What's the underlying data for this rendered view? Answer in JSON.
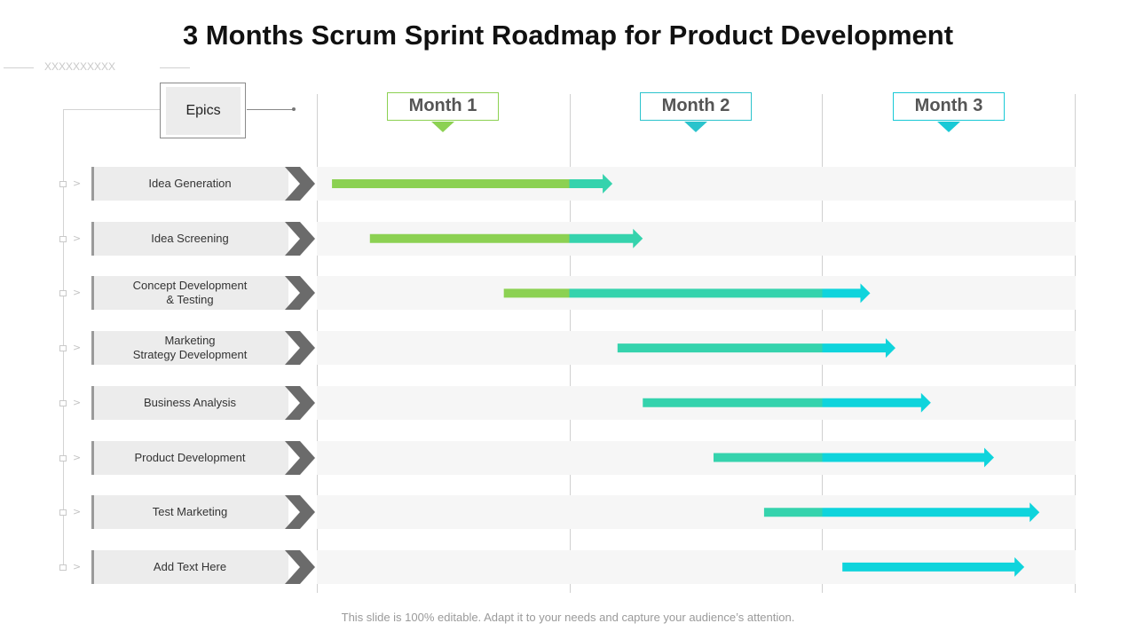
{
  "title": "3 Months Scrum Sprint Roadmap for Product Development",
  "decoration_text": "XXXXXXXXXX",
  "epics_label": "Epics",
  "footer": "This slide is 100% editable. Adapt it to your needs and capture your audience’s attention.",
  "colors": {
    "green": "#8cd152",
    "teal": "#35d3ad",
    "cyan": "#0fd4dc",
    "month1_border": "#8cd152",
    "month2_border": "#2bc3cc",
    "month3_border": "#18c9d6",
    "chevron": "#6b6b6b"
  },
  "chart_data": {
    "type": "gantt",
    "title": "3 Months Scrum Sprint Roadmap for Product Development",
    "x_unit": "months",
    "xlim": [
      0,
      3
    ],
    "months": [
      "Month 1",
      "Month 2",
      "Month 3"
    ],
    "tasks": [
      {
        "label": "Idea Generation",
        "start": 0.06,
        "end": 1.17
      },
      {
        "label": "Idea Screening",
        "start": 0.21,
        "end": 1.29
      },
      {
        "label": "Concept Development\n& Testing",
        "start": 0.74,
        "end": 2.19
      },
      {
        "label": "Marketing\nStrategy Development",
        "start": 1.19,
        "end": 2.29
      },
      {
        "label": "Business Analysis",
        "start": 1.29,
        "end": 2.43
      },
      {
        "label": "Product Development",
        "start": 1.57,
        "end": 2.68
      },
      {
        "label": "Test Marketing",
        "start": 1.77,
        "end": 2.86
      },
      {
        "label": "Add Text Here",
        "start": 2.08,
        "end": 2.8
      }
    ]
  }
}
